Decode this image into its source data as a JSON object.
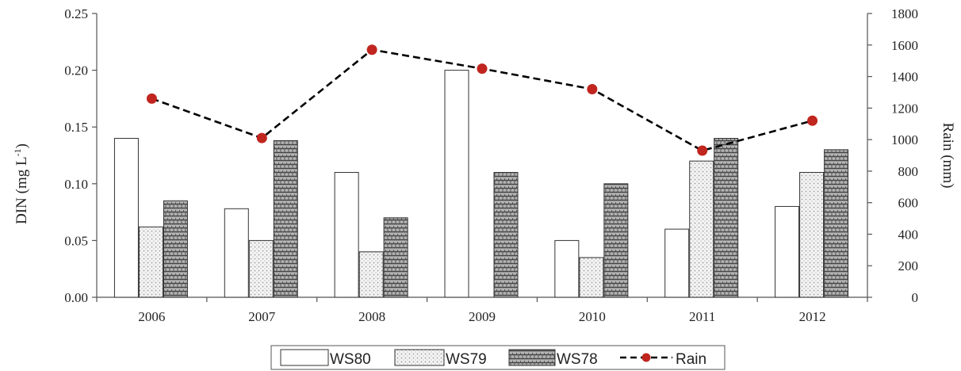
{
  "chart_data": {
    "type": "bar",
    "categories": [
      "2006",
      "2007",
      "2008",
      "2009",
      "2010",
      "2011",
      "2012"
    ],
    "series": [
      {
        "name": "WS80",
        "kind": "bar",
        "axis": "left",
        "values": [
          0.14,
          0.078,
          0.11,
          0.2,
          0.05,
          0.06,
          0.08
        ]
      },
      {
        "name": "WS79",
        "kind": "bar",
        "axis": "left",
        "values": [
          0.062,
          0.05,
          0.04,
          null,
          0.035,
          0.12,
          0.11
        ]
      },
      {
        "name": "WS78",
        "kind": "bar",
        "axis": "left",
        "values": [
          0.085,
          0.138,
          0.07,
          0.11,
          0.1,
          0.14,
          0.13
        ]
      },
      {
        "name": "Rain",
        "kind": "line",
        "axis": "right",
        "values": [
          1260,
          1010,
          1570,
          1450,
          1320,
          930,
          1120
        ]
      }
    ],
    "y_left": {
      "label": "DIN (mg L-1)",
      "label_main": "DIN (mg L",
      "label_sup": "-1",
      "label_close": ")",
      "range": [
        0,
        0.25
      ],
      "ticks": [
        "0.00",
        "0.05",
        "0.10",
        "0.15",
        "0.20",
        "0.25"
      ]
    },
    "y_right": {
      "label": "Rain (mm)",
      "range": [
        0,
        1800
      ],
      "ticks": [
        "0",
        "200",
        "400",
        "600",
        "800",
        "1000",
        "1200",
        "1400",
        "1600",
        "1800"
      ]
    },
    "grid": false,
    "legend_position": "bottom",
    "colors": {
      "bar_outline": "#333333",
      "rain_line": "#000000",
      "rain_marker": "#c0261f"
    }
  }
}
